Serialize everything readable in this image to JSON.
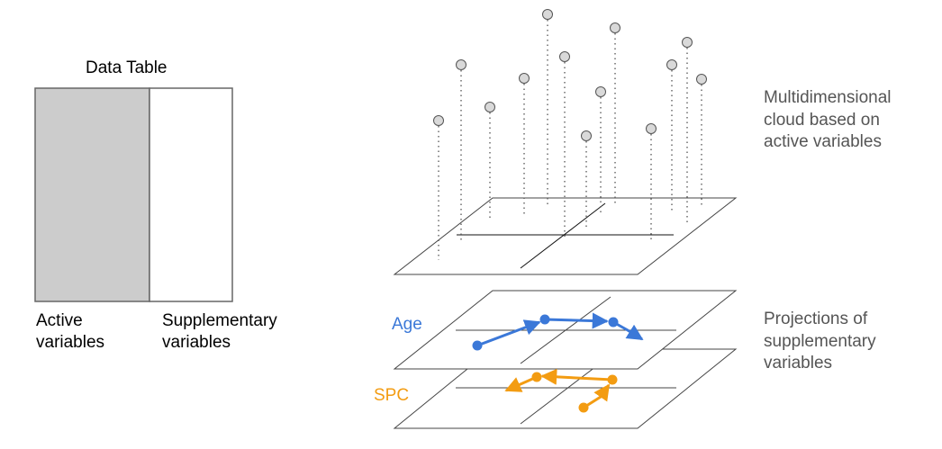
{
  "data_table": {
    "title": "Data Table",
    "active_label": "Active\nvariables",
    "supplementary_label": "Supplementary\nvariables",
    "active_fill": "#cccccc",
    "supplementary_fill": "#ffffff",
    "border_color": "#666666"
  },
  "cloud": {
    "description": "Multidimensional\ncloud based on\nactive variables",
    "point_fill": "#d9d9d9",
    "point_stroke": "#555555"
  },
  "projections": {
    "description": "Projections of\nsupplementary\nvariables",
    "age": {
      "label": "Age",
      "color": "#3b78d8"
    },
    "spc": {
      "label": "SPC",
      "color": "#f39c12"
    }
  },
  "colors": {
    "text_dark": "#000000",
    "text_gray": "#555555",
    "plane_stroke": "#444444"
  }
}
